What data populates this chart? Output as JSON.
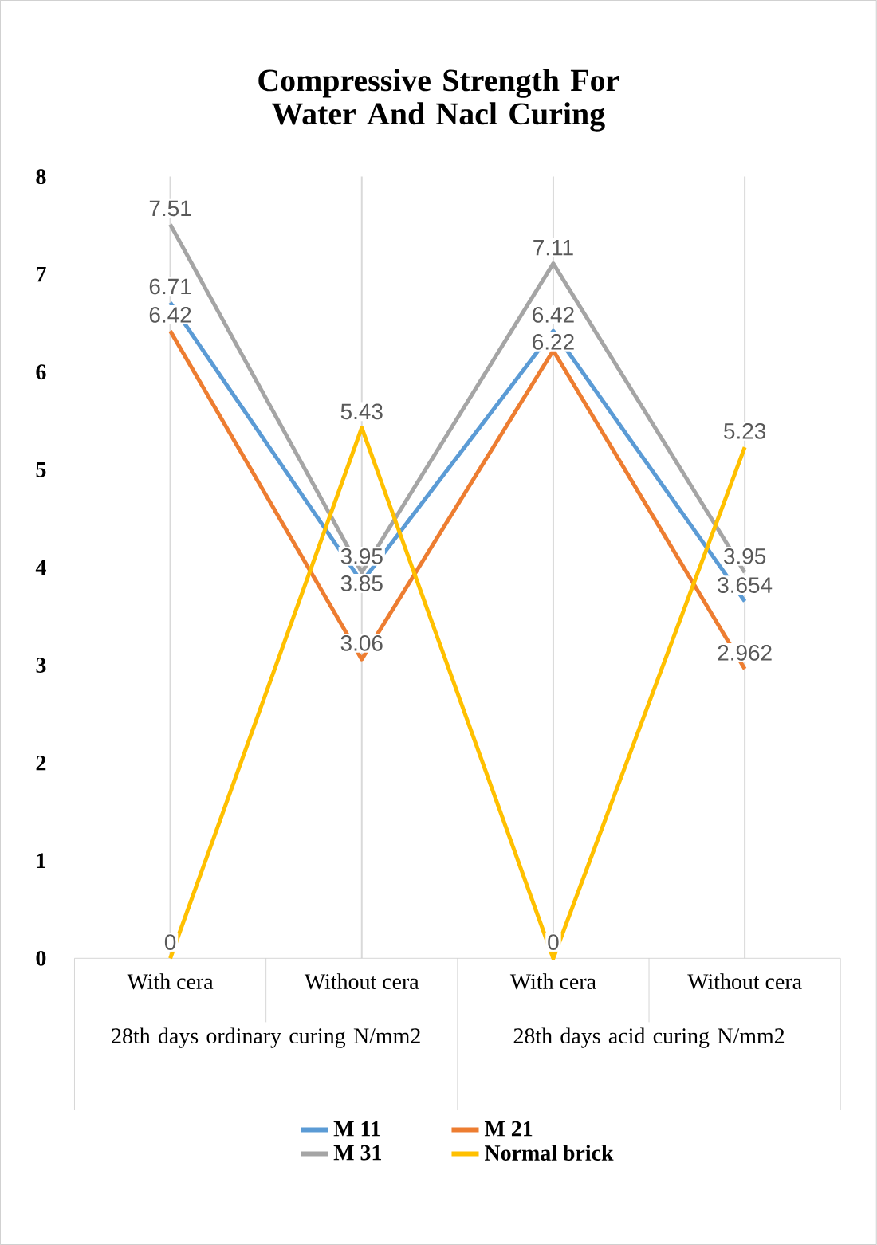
{
  "chart_data": {
    "type": "line",
    "title": "Compressive Strength For Water And Nacl  Curing",
    "categories": [
      "With cera",
      "Without cera",
      "With cera",
      "Without cera"
    ],
    "annotations": [
      "28th days ordinary curing N/mm2",
      "28th days acid curing N/mm2"
    ],
    "series": [
      {
        "name": "M 11",
        "color": "#5b9bd5",
        "values": [
          6.71,
          3.85,
          6.42,
          3.654
        ],
        "value_labels": [
          "6.71",
          "3.85",
          "6.42",
          "3.654"
        ]
      },
      {
        "name": "M 21",
        "color": "#ed7d31",
        "values": [
          6.42,
          3.06,
          6.22,
          2.962
        ],
        "value_labels": [
          "6.42",
          "3.06",
          "6.22",
          "2.962"
        ]
      },
      {
        "name": "M 31",
        "color": "#a5a5a5",
        "values": [
          7.51,
          3.95,
          7.11,
          3.95
        ],
        "value_labels": [
          "7.51",
          "3.95",
          "7.11",
          "3.95"
        ]
      },
      {
        "name": "Normal brick",
        "color": "#ffc000",
        "values": [
          0,
          5.43,
          0,
          5.23
        ],
        "value_labels": [
          "0",
          "5.43",
          "0",
          "5.23"
        ]
      }
    ],
    "ylim": [
      0,
      8
    ],
    "yticks": [
      0,
      1,
      2,
      3,
      4,
      5,
      6,
      7,
      8
    ],
    "grid": "x",
    "legend": "bottom",
    "marker": "none",
    "line_style": "solid"
  }
}
